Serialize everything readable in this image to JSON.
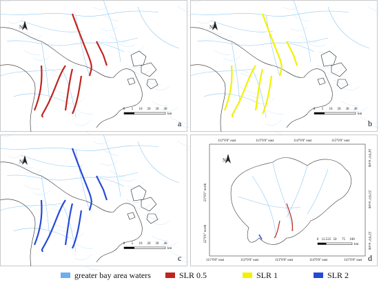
{
  "panels": [
    {
      "label": "a",
      "north": "N",
      "scale": [
        "0",
        "5",
        "10",
        "20",
        "30",
        "40"
      ],
      "unit": "km"
    },
    {
      "label": "b",
      "north": "N",
      "scale": [
        "0",
        "5",
        "10",
        "20",
        "30",
        "40"
      ],
      "unit": "km"
    },
    {
      "label": "c",
      "north": "N",
      "scale": [
        "0",
        "5",
        "10",
        "20",
        "30",
        "40"
      ],
      "unit": "km"
    },
    {
      "label": "d",
      "north": "N",
      "scale": [
        "0",
        "12.525",
        "50",
        "75",
        "100"
      ],
      "unit": "km",
      "top": [
        "112°0'0\" east",
        "113°0'0\" east",
        "114°0'0\" east",
        "115°0'0\" east"
      ],
      "bottom": [
        "111°0'0\" east",
        "112°0'0\" east",
        "113°0'0\" east",
        "114°0'0\" east",
        "115°0'0\" east"
      ],
      "left": [
        "23°0'0\" north",
        "22°0'0\" north"
      ],
      "right": [
        "24°0'0\" north",
        "23°0'0\" north",
        "22°0'0\" north"
      ]
    }
  ],
  "legend": [
    {
      "label": "greater bay area waters",
      "color": "#6aaff0"
    },
    {
      "label": "SLR 0.5",
      "color": "#c0231d"
    },
    {
      "label": "SLR 1",
      "color": "#f2f200"
    },
    {
      "label": "SLR 2",
      "color": "#2549d6"
    }
  ]
}
